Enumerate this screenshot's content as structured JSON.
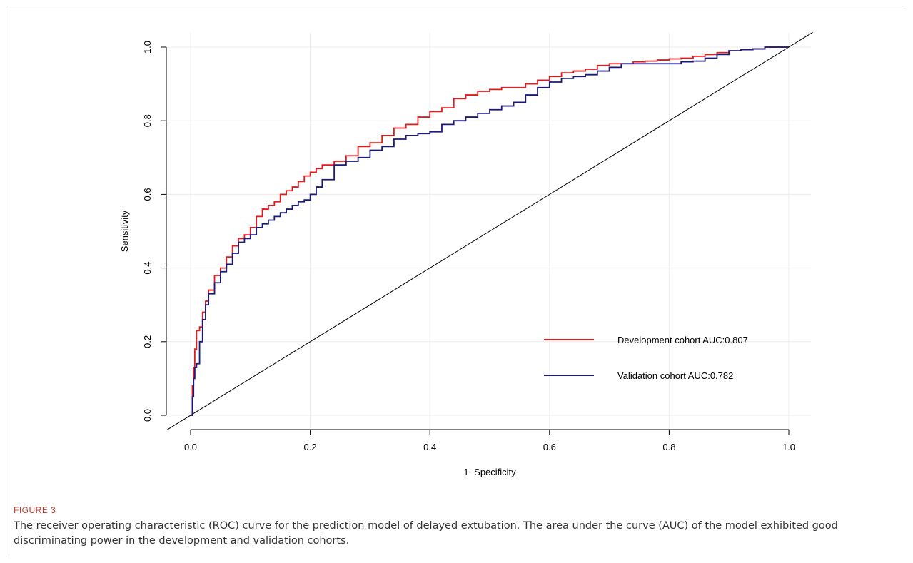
{
  "caption": {
    "label": "FIGURE 3",
    "text": "The receiver operating characteristic (ROC) curve for the prediction model of delayed extubation. The area under the curve (AUC) of the model exhibited good discriminating power in the development and validation cohorts."
  },
  "chart_data": {
    "type": "line",
    "title": "",
    "xlabel": "1−Specificity",
    "ylabel": "Sensitivity",
    "xlim": [
      0.0,
      1.0
    ],
    "ylim": [
      0.0,
      1.0
    ],
    "x_ticks": [
      "0.0",
      "0.2",
      "0.4",
      "0.6",
      "0.8",
      "1.0"
    ],
    "y_ticks": [
      "0.0",
      "0.2",
      "0.4",
      "0.6",
      "0.8",
      "1.0"
    ],
    "grid": true,
    "legend_position": "bottom-right",
    "reference_line": {
      "x": [
        0,
        1
      ],
      "y": [
        0,
        1
      ],
      "color": "#000000"
    },
    "series": [
      {
        "name": "Development cohort  AUC:0.807",
        "color": "#e41a1c",
        "x": [
          0.0,
          0.003,
          0.005,
          0.007,
          0.01,
          0.015,
          0.02,
          0.025,
          0.03,
          0.04,
          0.05,
          0.06,
          0.07,
          0.08,
          0.09,
          0.1,
          0.11,
          0.12,
          0.13,
          0.14,
          0.15,
          0.16,
          0.17,
          0.18,
          0.19,
          0.2,
          0.21,
          0.22,
          0.24,
          0.26,
          0.28,
          0.3,
          0.32,
          0.34,
          0.36,
          0.38,
          0.4,
          0.42,
          0.44,
          0.46,
          0.48,
          0.5,
          0.52,
          0.54,
          0.56,
          0.58,
          0.6,
          0.62,
          0.64,
          0.66,
          0.68,
          0.7,
          0.72,
          0.74,
          0.76,
          0.78,
          0.8,
          0.82,
          0.84,
          0.86,
          0.88,
          0.9,
          0.92,
          0.94,
          0.96,
          0.98,
          1.0
        ],
        "y": [
          0.0,
          0.08,
          0.13,
          0.18,
          0.23,
          0.24,
          0.28,
          0.31,
          0.34,
          0.38,
          0.4,
          0.43,
          0.46,
          0.48,
          0.49,
          0.51,
          0.54,
          0.56,
          0.57,
          0.58,
          0.6,
          0.61,
          0.62,
          0.635,
          0.65,
          0.66,
          0.67,
          0.68,
          0.69,
          0.705,
          0.73,
          0.74,
          0.76,
          0.78,
          0.79,
          0.81,
          0.825,
          0.835,
          0.86,
          0.87,
          0.88,
          0.885,
          0.89,
          0.89,
          0.9,
          0.91,
          0.92,
          0.93,
          0.935,
          0.94,
          0.95,
          0.955,
          0.955,
          0.96,
          0.962,
          0.965,
          0.968,
          0.97,
          0.975,
          0.98,
          0.985,
          0.99,
          0.993,
          0.995,
          1.0,
          1.0,
          1.0
        ]
      },
      {
        "name": "Validation cohort  AUC:0.782",
        "color": "#1a1a7c",
        "x": [
          0.0,
          0.003,
          0.005,
          0.007,
          0.01,
          0.015,
          0.02,
          0.025,
          0.03,
          0.04,
          0.05,
          0.06,
          0.07,
          0.08,
          0.09,
          0.1,
          0.11,
          0.12,
          0.13,
          0.14,
          0.15,
          0.16,
          0.17,
          0.18,
          0.19,
          0.2,
          0.21,
          0.22,
          0.24,
          0.26,
          0.28,
          0.3,
          0.32,
          0.34,
          0.36,
          0.38,
          0.4,
          0.42,
          0.44,
          0.46,
          0.48,
          0.5,
          0.52,
          0.54,
          0.56,
          0.58,
          0.6,
          0.62,
          0.64,
          0.66,
          0.68,
          0.7,
          0.72,
          0.74,
          0.76,
          0.78,
          0.8,
          0.82,
          0.84,
          0.86,
          0.88,
          0.9,
          0.92,
          0.94,
          0.96,
          0.98,
          1.0
        ],
        "y": [
          0.0,
          0.05,
          0.1,
          0.13,
          0.14,
          0.2,
          0.26,
          0.3,
          0.33,
          0.36,
          0.39,
          0.41,
          0.44,
          0.47,
          0.48,
          0.49,
          0.51,
          0.52,
          0.53,
          0.54,
          0.55,
          0.56,
          0.57,
          0.58,
          0.585,
          0.6,
          0.62,
          0.64,
          0.68,
          0.69,
          0.7,
          0.72,
          0.73,
          0.75,
          0.76,
          0.765,
          0.77,
          0.79,
          0.8,
          0.81,
          0.82,
          0.83,
          0.84,
          0.85,
          0.87,
          0.89,
          0.905,
          0.915,
          0.92,
          0.925,
          0.935,
          0.945,
          0.955,
          0.955,
          0.955,
          0.955,
          0.955,
          0.96,
          0.962,
          0.97,
          0.98,
          0.99,
          0.993,
          0.995,
          1.0,
          1.0,
          1.0
        ]
      }
    ]
  }
}
